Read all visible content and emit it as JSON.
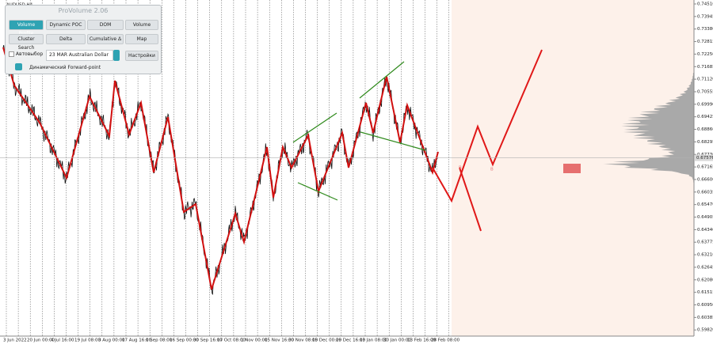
{
  "window": {
    "symbol": "AUDUSD,H4"
  },
  "panel": {
    "title": "ProVolume 2.06",
    "buttons": [
      "Volume Profile",
      "Dynamic POC",
      "DOM",
      "Volume",
      "Cluster Search",
      "Delta",
      "Cumulative Δ",
      "Map"
    ],
    "auto_select": "Автовыбор",
    "instrument": "23 MAR Australian Dollar",
    "settings": "Настройки",
    "forward_point": "Динамический Forward-point"
  },
  "price_axis": {
    "ylim": [
      0.5965,
      0.7451
    ],
    "ticks": [
      {
        "value": 0.7451,
        "label": "0.74510"
      },
      {
        "value": 0.73945,
        "label": "0.73945"
      },
      {
        "value": 0.7338,
        "label": "0.73380"
      },
      {
        "value": 0.72815,
        "label": "0.72815"
      },
      {
        "value": 0.7225,
        "label": "0.72250"
      },
      {
        "value": 0.71685,
        "label": "0.71685"
      },
      {
        "value": 0.7112,
        "label": "0.71120"
      },
      {
        "value": 0.70555,
        "label": "0.70555"
      },
      {
        "value": 0.6999,
        "label": "0.69990"
      },
      {
        "value": 0.69425,
        "label": "0.69425"
      },
      {
        "value": 0.6886,
        "label": "0.68860"
      },
      {
        "value": 0.68295,
        "label": "0.68295"
      },
      {
        "value": 0.6773,
        "label": "0.67730"
      },
      {
        "value": 0.67165,
        "label": "0.67165"
      },
      {
        "value": 0.666,
        "label": "0.66600"
      },
      {
        "value": 0.66035,
        "label": "0.66035"
      },
      {
        "value": 0.6547,
        "label": "0.65470"
      },
      {
        "value": 0.64905,
        "label": "0.64905"
      },
      {
        "value": 0.6434,
        "label": "0.64340"
      },
      {
        "value": 0.63775,
        "label": "0.63775"
      },
      {
        "value": 0.6321,
        "label": "0.63210"
      },
      {
        "value": 0.62645,
        "label": "0.62645"
      },
      {
        "value": 0.6208,
        "label": "0.62080"
      },
      {
        "value": 0.61515,
        "label": "0.61515"
      },
      {
        "value": 0.6095,
        "label": "0.60950"
      },
      {
        "value": 0.60385,
        "label": "0.60385"
      },
      {
        "value": 0.5982,
        "label": "0.59820"
      }
    ],
    "current": {
      "value": 0.67576,
      "label": "0.67576"
    }
  },
  "time_axis": [
    "3 Jun 2022",
    "20 Jun 00:00",
    "4 Jul 16:00",
    "19 Jul 08:00",
    "3 Aug 00:00",
    "17 Aug 16:00",
    "1 Sep 08:00",
    "16 Sep 00:00",
    "30 Sep 16:00",
    "17 Oct 08:00",
    "1 Nov 00:00",
    "15 Nov 16:00",
    "30 Nov 08:00",
    "15 Dec 00:00",
    "29 Dec 16:00",
    "13 Jan 08:00",
    "30 Jan 00:00",
    "13 Feb 16:00",
    "28 Feb 08:00"
  ]
}
